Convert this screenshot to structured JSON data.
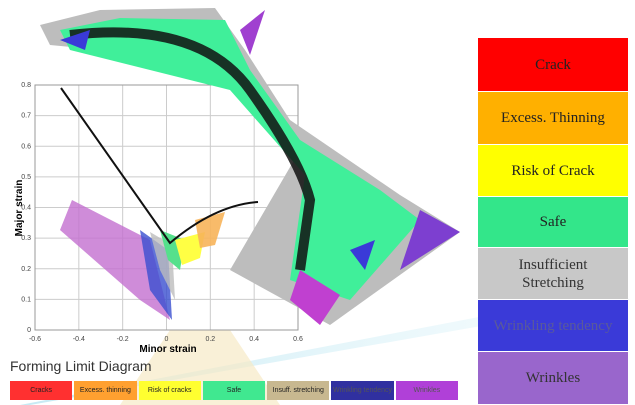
{
  "fld": {
    "title": "Forming Limit Diagram",
    "x_label": "Minor strain",
    "y_label": "Major strain",
    "x_ticks": [
      "-0.6",
      "-0.4",
      "-0.2",
      "0",
      "0.2",
      "0.4",
      "0.6"
    ],
    "y_ticks": [
      "0",
      "0.1",
      "0.2",
      "0.3",
      "0.4",
      "0.5",
      "0.6",
      "0.7",
      "0.8"
    ],
    "bar": [
      "Cracks",
      "Excess. thinning",
      "Risk of cracks",
      "Safe",
      "Insuff. stretching",
      "Wrinkling tendency",
      "Wrinkles"
    ]
  },
  "legend": {
    "items": [
      "Crack",
      "Excess. Thinning",
      "Risk of Crack",
      "Safe",
      "Insufficient Stretching",
      "Wrinkling tendency",
      "Wrinkles"
    ]
  }
}
